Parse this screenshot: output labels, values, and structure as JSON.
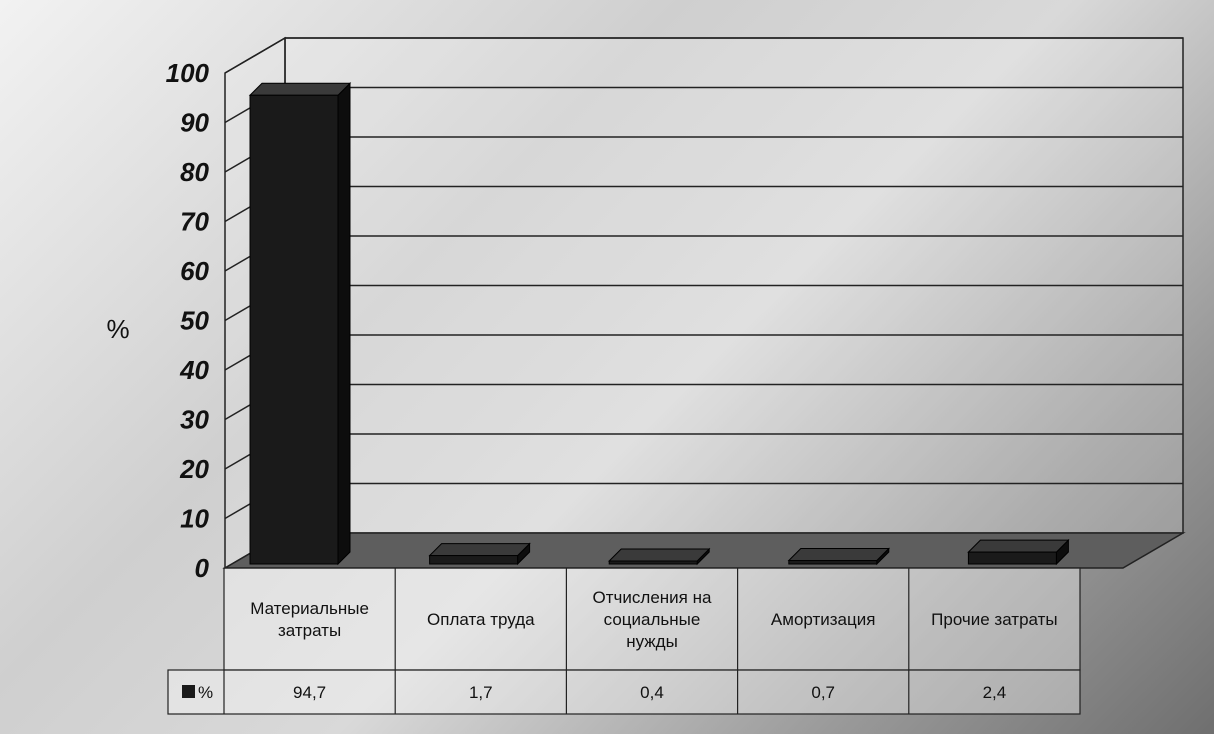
{
  "chart_data": {
    "type": "bar",
    "title": "",
    "ylabel": "%",
    "xlabel": "",
    "ylim": [
      0,
      100
    ],
    "yticks": [
      0,
      10,
      20,
      30,
      40,
      50,
      60,
      70,
      80,
      90,
      100
    ],
    "categories": [
      "Материальные затраты",
      "Оплата труда",
      "Отчисления на социальные нужды",
      "Амортизация",
      "Прочие затраты"
    ],
    "series": [
      {
        "name": "%",
        "values": [
          94.7,
          1.7,
          0.4,
          0.7,
          2.4
        ],
        "value_labels": [
          "94,7",
          "1,7",
          "0,4",
          "0,7",
          "2,4"
        ]
      }
    ],
    "grid": true,
    "legend": "data-table-left",
    "colors": {
      "bar": "#1a1a1a",
      "grid": "#222222"
    }
  }
}
